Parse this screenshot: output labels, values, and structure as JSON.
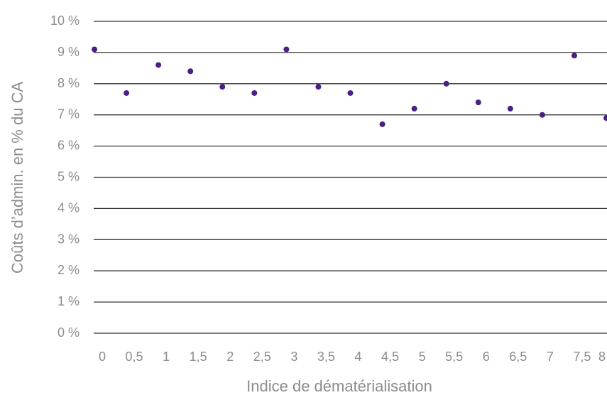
{
  "chart_data": {
    "type": "scatter",
    "title": "",
    "xlabel": "Indice de dématérialisation",
    "ylabel": "Coûts d’admin. en % du CA",
    "xlim": [
      0,
      8
    ],
    "ylim": [
      0,
      10
    ],
    "grid": true,
    "x_tick_labels": [
      "0",
      "0,5",
      "1",
      "1,5",
      "2",
      "2,5",
      "3",
      "3,5",
      "4",
      "4,5",
      "5",
      "5,5",
      "6",
      "6,5",
      "7",
      "7,5",
      "8"
    ],
    "y_tick_labels": [
      "0 %",
      "1 %",
      "2 %",
      "3 %",
      "4 %",
      "5 %",
      "6 %",
      "7 %",
      "8 %",
      "9 %",
      "10 %"
    ],
    "y_tick_values": [
      0,
      1,
      2,
      3,
      4,
      5,
      6,
      7,
      8,
      9,
      10
    ],
    "point_color": "#4b2085",
    "points": [
      {
        "x": 0.0,
        "y": 9.1
      },
      {
        "x": 0.5,
        "y": 7.7
      },
      {
        "x": 1.0,
        "y": 8.6
      },
      {
        "x": 1.5,
        "y": 8.4
      },
      {
        "x": 2.0,
        "y": 7.9
      },
      {
        "x": 2.5,
        "y": 7.7
      },
      {
        "x": 3.0,
        "y": 9.1
      },
      {
        "x": 3.5,
        "y": 7.9
      },
      {
        "x": 4.0,
        "y": 7.7
      },
      {
        "x": 4.5,
        "y": 6.7
      },
      {
        "x": 5.0,
        "y": 7.2
      },
      {
        "x": 5.5,
        "y": 8.0
      },
      {
        "x": 6.0,
        "y": 7.4
      },
      {
        "x": 6.5,
        "y": 7.2
      },
      {
        "x": 7.0,
        "y": 7.0
      },
      {
        "x": 7.5,
        "y": 8.9
      },
      {
        "x": 8.0,
        "y": 6.9
      }
    ]
  }
}
